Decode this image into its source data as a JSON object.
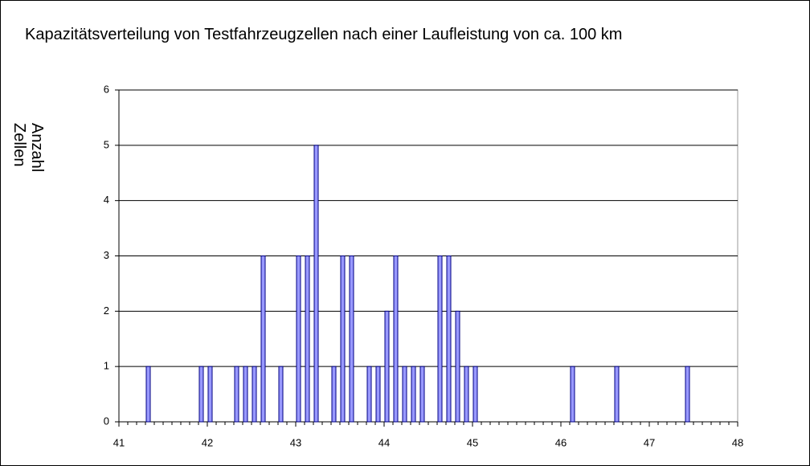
{
  "chart_data": {
    "type": "bar",
    "title": "Kapazitätsverteilung von Testfahrzeugzellen nach einer Laufleistung von ca. 100 km",
    "ylabel": "Anzahl Zellen",
    "x": [
      41.3,
      41.9,
      42.0,
      42.3,
      42.4,
      42.5,
      42.6,
      42.8,
      43.0,
      43.1,
      43.2,
      43.4,
      43.5,
      43.6,
      43.8,
      43.9,
      44.0,
      44.1,
      44.2,
      44.3,
      44.4,
      44.6,
      44.7,
      44.8,
      44.9,
      45.0,
      46.1,
      46.6,
      47.4
    ],
    "values": [
      1,
      1,
      1,
      1,
      1,
      1,
      3,
      1,
      3,
      3,
      5,
      1,
      3,
      3,
      1,
      1,
      2,
      3,
      1,
      1,
      1,
      3,
      3,
      2,
      1,
      1,
      1,
      1,
      1
    ],
    "color": "#9999ff",
    "xlim": [
      41,
      48
    ],
    "xticks": [
      41,
      42,
      43,
      44,
      45,
      46,
      47,
      48
    ],
    "ylim": [
      0,
      6
    ],
    "yticks": [
      0,
      1,
      2,
      3,
      4,
      5,
      6
    ],
    "grid": true
  }
}
